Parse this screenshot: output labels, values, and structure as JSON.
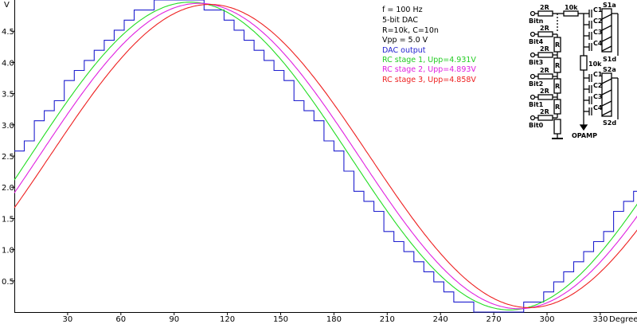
{
  "chart_data": {
    "type": "line",
    "ylabel": "V",
    "xlabel": "Degrees",
    "xlim": [
      0,
      351
    ],
    "ylim": [
      0,
      5.0
    ],
    "x_ticks": [
      30,
      60,
      90,
      120,
      150,
      180,
      210,
      240,
      270,
      300,
      330
    ],
    "y_ticks": [
      0.5,
      1.0,
      1.5,
      2.0,
      2.5,
      3.0,
      3.5,
      4.0,
      4.5
    ],
    "y_tick_labels": [
      "0.5",
      "1.0",
      "1.5",
      "2.0",
      "2.5",
      "3.0",
      "3.5",
      "4.0",
      "4.5"
    ],
    "info": [
      "f = 100 Hz",
      "5-bit DAC",
      "R=10k, C=10n",
      "Vpp = 5.0 V"
    ],
    "dac_bits": 5,
    "vpp": 5.0,
    "series": [
      {
        "name": "DAC output",
        "label": "DAC output",
        "color": "#1f1fcf",
        "kind": "staircase",
        "phase_deg": 0,
        "amplitude": 2.5,
        "offset": 2.5
      },
      {
        "name": "RC stage 1",
        "label": "RC stage 1, Upp=4.931V",
        "color": "#22dd22",
        "kind": "sine",
        "phase_deg": 9,
        "amplitude": 2.4655,
        "offset": 2.5
      },
      {
        "name": "RC stage 2",
        "label": "RC stage 2, Upp=4.893V",
        "color": "#e020e0",
        "kind": "sine",
        "phase_deg": 14,
        "amplitude": 2.4465,
        "offset": 2.5
      },
      {
        "name": "RC stage 3",
        "label": "RC stage 3, Upp=4.858V",
        "color": "#ee2020",
        "kind": "sine",
        "phase_deg": 20,
        "amplitude": 2.429,
        "offset": 2.5
      }
    ]
  },
  "schematic": {
    "resistor_labels": [
      "2R",
      "2R",
      "2R",
      "2R",
      "2R",
      "2R"
    ],
    "bit_labels": [
      "Bitn",
      "Bit4",
      "Bit3",
      "Bit2",
      "Bit1",
      "Bit0"
    ],
    "ladder_label": "R",
    "series_resistor": "10k",
    "shunt_resistor": "10k",
    "caps_top": [
      "C1",
      "C2",
      "C3",
      "C4"
    ],
    "caps_bottom": [
      "C1",
      "C2",
      "C3",
      "C4"
    ],
    "switch_labels": [
      "S1a",
      "S1d",
      "S2a",
      "S2d"
    ],
    "output_label": "OPAMP"
  }
}
